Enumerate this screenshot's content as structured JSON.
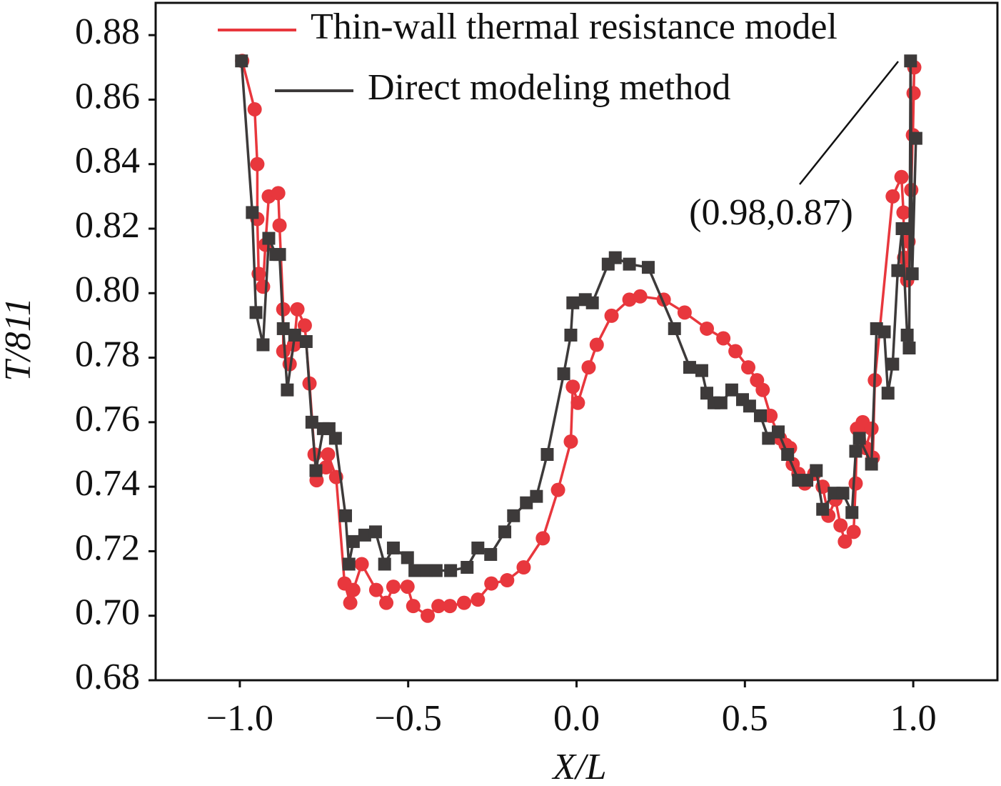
{
  "chart_data": {
    "type": "line",
    "xlabel": "X/L",
    "ylabel": "T/811",
    "annotation": "(0.98,0.87)",
    "xlim": [
      -1.25,
      1.25
    ],
    "xticks": [
      {
        "value": -1,
        "label": "−1.0"
      },
      {
        "value": -0.5,
        "label": "−0.5"
      },
      {
        "value": 0,
        "label": "0.0"
      },
      0.5,
      {
        "value": 1,
        "label": "1.0"
      }
    ],
    "ylim": [
      0.68,
      0.89
    ],
    "yticks": [
      0.68,
      {
        "value": 0.7,
        "label": "0.70"
      },
      0.72,
      0.74,
      0.76,
      0.78,
      {
        "value": 0.8,
        "label": "0.80"
      },
      0.82,
      0.84,
      0.86,
      0.88
    ],
    "grid": false,
    "legend": "top",
    "series": [
      {
        "name": "Thin-wall thermal resistance model",
        "color": "#e8373d",
        "marker": "circle",
        "x": [
          -0.993,
          -0.956,
          -0.948,
          -0.948,
          -0.944,
          -0.931,
          -0.924,
          -0.914,
          -0.886,
          -0.882,
          -0.871,
          -0.871,
          -0.852,
          -0.839,
          -0.829,
          -0.807,
          -0.793,
          -0.778,
          -0.772,
          -0.744,
          -0.738,
          -0.714,
          -0.689,
          -0.672,
          -0.663,
          -0.638,
          -0.595,
          -0.565,
          -0.544,
          -0.502,
          -0.485,
          -0.442,
          -0.41,
          -0.376,
          -0.334,
          -0.293,
          -0.253,
          -0.206,
          -0.157,
          -0.1,
          -0.055,
          -0.017,
          -0.011,
          0.004,
          0.036,
          0.06,
          0.104,
          0.157,
          0.189,
          0.259,
          0.321,
          0.387,
          0.436,
          0.472,
          0.51,
          0.536,
          0.553,
          0.576,
          0.604,
          0.621,
          0.634,
          0.642,
          0.659,
          0.678,
          0.706,
          0.731,
          0.748,
          0.769,
          0.784,
          0.797,
          0.823,
          0.829,
          0.833,
          0.85,
          0.859,
          0.876,
          0.88,
          0.886,
          0.939,
          0.965,
          0.971,
          0.973,
          0.982,
          0.986,
          0.994,
          1.001,
          1.003,
          0.999
        ],
        "values": [
          0.872,
          0.857,
          0.84,
          0.823,
          0.806,
          0.802,
          0.815,
          0.83,
          0.831,
          0.821,
          0.795,
          0.782,
          0.778,
          0.784,
          0.795,
          0.79,
          0.772,
          0.75,
          0.742,
          0.746,
          0.75,
          0.743,
          0.71,
          0.704,
          0.708,
          0.716,
          0.708,
          0.704,
          0.709,
          0.709,
          0.703,
          0.7,
          0.703,
          0.703,
          0.704,
          0.705,
          0.71,
          0.711,
          0.715,
          0.724,
          0.739,
          0.754,
          0.771,
          0.766,
          0.777,
          0.784,
          0.793,
          0.798,
          0.799,
          0.798,
          0.794,
          0.789,
          0.786,
          0.782,
          0.777,
          0.773,
          0.77,
          0.762,
          0.755,
          0.753,
          0.752,
          0.747,
          0.744,
          0.741,
          0.744,
          0.74,
          0.731,
          0.736,
          0.728,
          0.723,
          0.726,
          0.741,
          0.758,
          0.76,
          0.752,
          0.758,
          0.749,
          0.773,
          0.83,
          0.836,
          0.825,
          0.811,
          0.804,
          0.816,
          0.832,
          0.862,
          0.87,
          0.849
        ]
      },
      {
        "name": "Direct modeling method",
        "color": "#3d3a3a",
        "marker": "square",
        "x": [
          -0.995,
          -0.963,
          -0.952,
          -0.931,
          -0.914,
          -0.893,
          -0.882,
          -0.871,
          -0.859,
          -0.837,
          -0.803,
          -0.786,
          -0.774,
          -0.752,
          -0.735,
          -0.716,
          -0.686,
          -0.676,
          -0.663,
          -0.629,
          -0.597,
          -0.57,
          -0.544,
          -0.502,
          -0.48,
          -0.446,
          -0.417,
          -0.374,
          -0.325,
          -0.293,
          -0.255,
          -0.213,
          -0.187,
          -0.149,
          -0.119,
          -0.087,
          -0.038,
          -0.017,
          -0.011,
          0.026,
          0.047,
          0.094,
          0.115,
          0.157,
          0.213,
          0.291,
          0.336,
          0.372,
          0.387,
          0.408,
          0.429,
          0.461,
          0.493,
          0.514,
          0.546,
          0.57,
          0.599,
          0.627,
          0.659,
          0.684,
          0.712,
          0.731,
          0.765,
          0.791,
          0.818,
          0.829,
          0.84,
          0.876,
          0.891,
          0.914,
          0.925,
          0.939,
          0.954,
          0.967,
          0.982,
          0.988,
          0.992,
          0.997,
          1.008
        ],
        "values": [
          0.872,
          0.825,
          0.794,
          0.784,
          0.817,
          0.812,
          0.812,
          0.789,
          0.77,
          0.787,
          0.785,
          0.76,
          0.745,
          0.758,
          0.758,
          0.755,
          0.731,
          0.716,
          0.723,
          0.725,
          0.726,
          0.716,
          0.721,
          0.718,
          0.714,
          0.714,
          0.714,
          0.714,
          0.715,
          0.721,
          0.719,
          0.726,
          0.731,
          0.735,
          0.737,
          0.75,
          0.775,
          0.787,
          0.797,
          0.798,
          0.797,
          0.809,
          0.811,
          0.809,
          0.808,
          0.789,
          0.777,
          0.776,
          0.769,
          0.766,
          0.766,
          0.77,
          0.767,
          0.765,
          0.762,
          0.755,
          0.757,
          0.75,
          0.742,
          0.742,
          0.745,
          0.733,
          0.738,
          0.738,
          0.732,
          0.751,
          0.755,
          0.747,
          0.789,
          0.788,
          0.769,
          0.778,
          0.807,
          0.82,
          0.787,
          0.783,
          0.872,
          0.806,
          0.848
        ]
      }
    ]
  }
}
